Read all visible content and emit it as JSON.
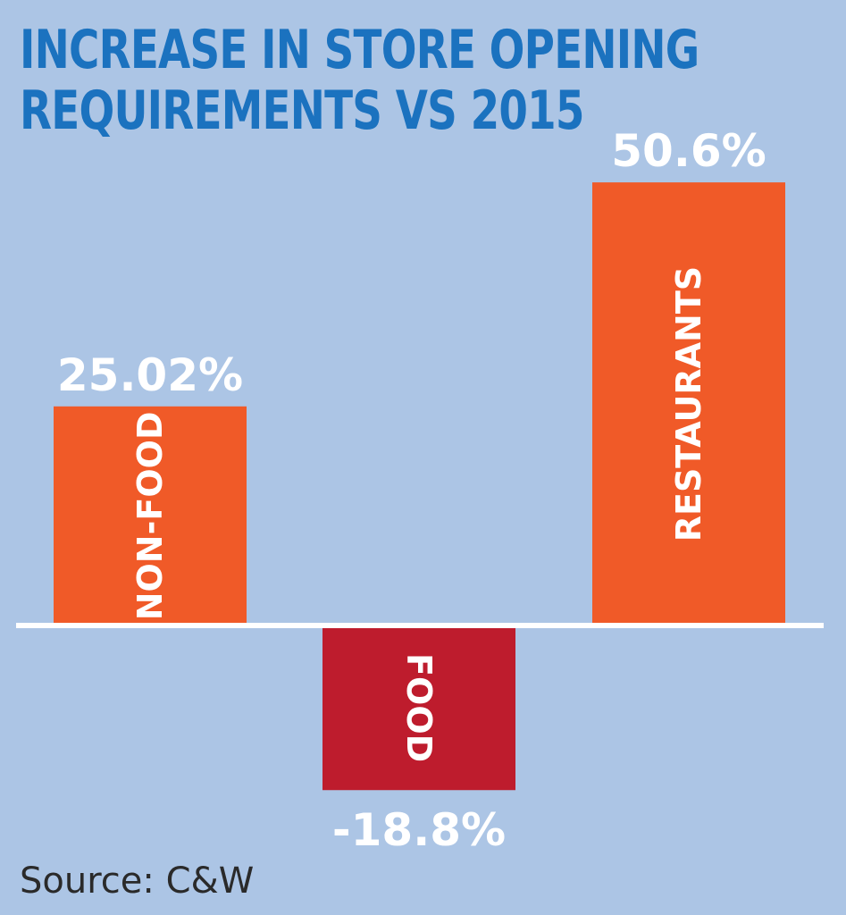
{
  "title_lines": [
    "INCREASE IN STORE OPENING",
    "REQUIREMENTS VS 2015"
  ],
  "source": "Source: C&W",
  "colors": {
    "background": "#acc5e5",
    "title": "#1b72bf",
    "positive_bar": "#f05a28",
    "negative_bar": "#be1c2d",
    "baseline": "#ffffff"
  },
  "chart_data": {
    "type": "bar",
    "title": "INCREASE IN STORE OPENING REQUIREMENTS VS 2015",
    "categories": [
      "NON-FOOD",
      "FOOD",
      "RESTAURANTS"
    ],
    "values": [
      25.02,
      -18.8,
      50.6
    ],
    "value_labels": [
      "25.02%",
      "-18.8%",
      "50.6%"
    ],
    "xlabel": "",
    "ylabel": "",
    "ylim": [
      -18.8,
      50.6
    ],
    "grid": false,
    "legend": "none"
  }
}
